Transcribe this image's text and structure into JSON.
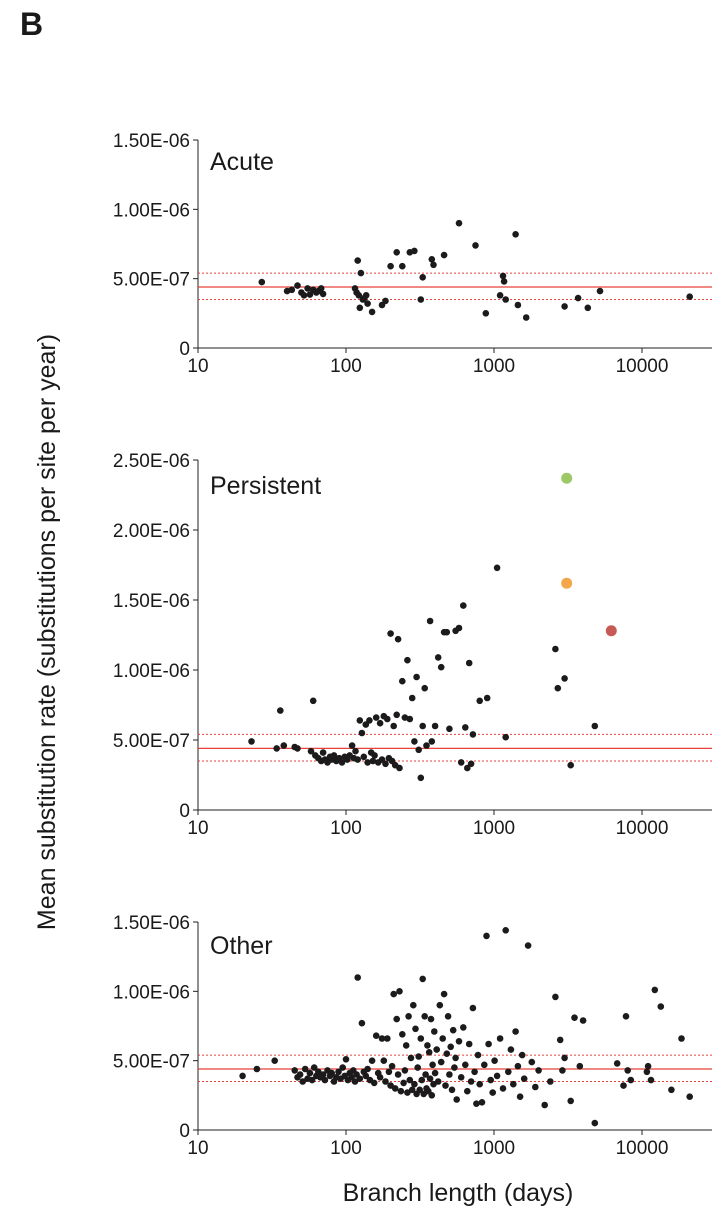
{
  "panel_label": "B",
  "ylabel": "Mean substitution rate (substitutions per site per year)",
  "xlabel": "Branch length (days)",
  "colors": {
    "point": "#1c1a1a",
    "mean_line": "#e8413a",
    "ci_line": "#e8413a",
    "axis": "#222222",
    "green": "#9cc866",
    "orange": "#f4a64a",
    "red": "#c85a56"
  },
  "chart_data": [
    {
      "type": "scatter",
      "title": "Acute",
      "x_scale": "log",
      "xlim": [
        10,
        30000
      ],
      "ylim": [
        0,
        1.5e-06
      ],
      "x_ticks": [
        10,
        100,
        1000,
        10000
      ],
      "x_tick_labels": [
        "10",
        "100",
        "1000",
        "10000"
      ],
      "y_ticks": [
        0,
        5e-07,
        1e-06,
        1.5e-06
      ],
      "y_tick_labels": [
        "0",
        "5.00E-07",
        "1.00E-06",
        "1.50E-06"
      ],
      "reference_lines": {
        "mean": 4.4e-07,
        "lower": 3.5e-07,
        "upper": 5.4e-07
      },
      "points": [
        [
          27,
          4.75e-07
        ],
        [
          40,
          4.1e-07
        ],
        [
          43,
          4.2e-07
        ],
        [
          47,
          4.5e-07
        ],
        [
          50,
          4e-07
        ],
        [
          52,
          3.8e-07
        ],
        [
          55,
          4.3e-07
        ],
        [
          57,
          3.85e-07
        ],
        [
          60,
          4.2e-07
        ],
        [
          63,
          4e-07
        ],
        [
          65,
          4.1e-07
        ],
        [
          68,
          4.3e-07
        ],
        [
          70,
          3.9e-07
        ],
        [
          115,
          4.3e-07
        ],
        [
          118,
          4e-07
        ],
        [
          120,
          6.3e-07
        ],
        [
          122,
          3.8e-07
        ],
        [
          124,
          2.9e-07
        ],
        [
          126,
          5.4e-07
        ],
        [
          130,
          3.5e-07
        ],
        [
          133,
          3.6e-07
        ],
        [
          137,
          3.8e-07
        ],
        [
          140,
          3.2e-07
        ],
        [
          150,
          2.6e-07
        ],
        [
          175,
          3.1e-07
        ],
        [
          185,
          3.4e-07
        ],
        [
          200,
          5.9e-07
        ],
        [
          220,
          6.9e-07
        ],
        [
          240,
          5.9e-07
        ],
        [
          270,
          6.9e-07
        ],
        [
          290,
          7e-07
        ],
        [
          320,
          3.5e-07
        ],
        [
          330,
          5.1e-07
        ],
        [
          380,
          6.4e-07
        ],
        [
          390,
          6e-07
        ],
        [
          460,
          6.7e-07
        ],
        [
          580,
          9e-07
        ],
        [
          750,
          7.4e-07
        ],
        [
          880,
          2.5e-07
        ],
        [
          1100,
          3.8e-07
        ],
        [
          1150,
          5.2e-07
        ],
        [
          1170,
          4.8e-07
        ],
        [
          1200,
          3.5e-07
        ],
        [
          1400,
          8.2e-07
        ],
        [
          1450,
          3.1e-07
        ],
        [
          1650,
          2.2e-07
        ],
        [
          3000,
          3e-07
        ],
        [
          3700,
          3.6e-07
        ],
        [
          4300,
          2.9e-07
        ],
        [
          5200,
          4.1e-07
        ],
        [
          21000,
          3.7e-07
        ]
      ]
    },
    {
      "type": "scatter",
      "title": "Persistent",
      "x_scale": "log",
      "xlim": [
        10,
        30000
      ],
      "ylim": [
        0,
        2.5e-06
      ],
      "x_ticks": [
        10,
        100,
        1000,
        10000
      ],
      "x_tick_labels": [
        "10",
        "100",
        "1000",
        "10000"
      ],
      "y_ticks": [
        0,
        5e-07,
        1e-06,
        1.5e-06,
        2e-06,
        2.5e-06
      ],
      "y_tick_labels": [
        "0",
        "5.00E-07",
        "1.00E-06",
        "1.50E-06",
        "2.00E-06",
        "2.50E-06"
      ],
      "reference_lines": {
        "mean": 4.4e-07,
        "lower": 3.5e-07,
        "upper": 5.4e-07
      },
      "highlighted_points": [
        {
          "x": 3100,
          "y": 2.37e-06,
          "color": "green"
        },
        {
          "x": 3100,
          "y": 1.62e-06,
          "color": "orange"
        },
        {
          "x": 6200,
          "y": 1.28e-06,
          "color": "red"
        }
      ],
      "points": [
        [
          23,
          4.9e-07
        ],
        [
          34,
          4.4e-07
        ],
        [
          36,
          7.1e-07
        ],
        [
          38,
          4.6e-07
        ],
        [
          45,
          4.5e-07
        ],
        [
          47,
          4.4e-07
        ],
        [
          58,
          4.2e-07
        ],
        [
          60,
          7.8e-07
        ],
        [
          62,
          3.9e-07
        ],
        [
          65,
          3.7e-07
        ],
        [
          68,
          3.5e-07
        ],
        [
          70,
          4.1e-07
        ],
        [
          72,
          3.6e-07
        ],
        [
          75,
          3.4e-07
        ],
        [
          78,
          3.8e-07
        ],
        [
          80,
          3.6e-07
        ],
        [
          83,
          3.9e-07
        ],
        [
          86,
          3.5e-07
        ],
        [
          90,
          3.7e-07
        ],
        [
          94,
          3.4e-07
        ],
        [
          98,
          3.8e-07
        ],
        [
          102,
          3.6e-07
        ],
        [
          106,
          3.9e-07
        ],
        [
          110,
          4.6e-07
        ],
        [
          113,
          3.7e-07
        ],
        [
          116,
          4.2e-07
        ],
        [
          120,
          3.6e-07
        ],
        [
          124,
          6.4e-07
        ],
        [
          128,
          5.5e-07
        ],
        [
          132,
          3.8e-07
        ],
        [
          136,
          6.1e-07
        ],
        [
          140,
          3.4e-07
        ],
        [
          144,
          6.4e-07
        ],
        [
          148,
          4.1e-07
        ],
        [
          152,
          3.5e-07
        ],
        [
          156,
          3.9e-07
        ],
        [
          160,
          6.6e-07
        ],
        [
          165,
          3.4e-07
        ],
        [
          170,
          6.2e-07
        ],
        [
          175,
          3.6e-07
        ],
        [
          180,
          6.7e-07
        ],
        [
          185,
          3.3e-07
        ],
        [
          190,
          6.5e-07
        ],
        [
          195,
          3.7e-07
        ],
        [
          200,
          1.26e-06
        ],
        [
          205,
          3.5e-07
        ],
        [
          210,
          6e-07
        ],
        [
          215,
          3.2e-07
        ],
        [
          220,
          6.8e-07
        ],
        [
          225,
          1.22e-06
        ],
        [
          230,
          3e-07
        ],
        [
          240,
          9.2e-07
        ],
        [
          250,
          6.6e-07
        ],
        [
          260,
          1.07e-06
        ],
        [
          270,
          6.5e-07
        ],
        [
          280,
          8e-07
        ],
        [
          290,
          4.9e-07
        ],
        [
          300,
          9.5e-07
        ],
        [
          310,
          4.3e-07
        ],
        [
          320,
          2.3e-07
        ],
        [
          330,
          6e-07
        ],
        [
          340,
          8.7e-07
        ],
        [
          350,
          4.6e-07
        ],
        [
          370,
          1.35e-06
        ],
        [
          380,
          4.9e-07
        ],
        [
          400,
          6e-07
        ],
        [
          420,
          1.09e-06
        ],
        [
          440,
          1.02e-06
        ],
        [
          460,
          1.27e-06
        ],
        [
          480,
          1.27e-06
        ],
        [
          500,
          5.8e-07
        ],
        [
          550,
          1.28e-06
        ],
        [
          580,
          1.3e-06
        ],
        [
          600,
          3.4e-07
        ],
        [
          620,
          1.46e-06
        ],
        [
          640,
          5.9e-07
        ],
        [
          660,
          3e-07
        ],
        [
          680,
          1.05e-06
        ],
        [
          700,
          3.3e-07
        ],
        [
          720,
          5.4e-07
        ],
        [
          800,
          7.8e-07
        ],
        [
          900,
          8e-07
        ],
        [
          1050,
          1.73e-06
        ],
        [
          1200,
          5.2e-07
        ],
        [
          2600,
          1.15e-06
        ],
        [
          2700,
          8.7e-07
        ],
        [
          3000,
          9.4e-07
        ],
        [
          3300,
          3.2e-07
        ],
        [
          4800,
          6e-07
        ]
      ]
    },
    {
      "type": "scatter",
      "title": "Other",
      "x_scale": "log",
      "xlim": [
        10,
        30000
      ],
      "ylim": [
        0,
        1.5e-06
      ],
      "x_ticks": [
        10,
        100,
        1000,
        10000
      ],
      "x_tick_labels": [
        "10",
        "100",
        "1000",
        "10000"
      ],
      "y_ticks": [
        0,
        5e-07,
        1e-06,
        1.5e-06
      ],
      "y_tick_labels": [
        "0",
        "5.00E-07",
        "1.00E-06",
        "1.50E-06"
      ],
      "reference_lines": {
        "mean": 4.4e-07,
        "lower": 3.5e-07,
        "upper": 5.4e-07
      },
      "points": [
        [
          20,
          3.9e-07
        ],
        [
          25,
          4.4e-07
        ],
        [
          33,
          5e-07
        ],
        [
          45,
          4.3e-07
        ],
        [
          47,
          3.8e-07
        ],
        [
          49,
          4e-07
        ],
        [
          51,
          3.5e-07
        ],
        [
          53,
          4.4e-07
        ],
        [
          55,
          3.7e-07
        ],
        [
          57,
          4.1e-07
        ],
        [
          59,
          3.6e-07
        ],
        [
          61,
          4.5e-07
        ],
        [
          63,
          3.9e-07
        ],
        [
          65,
          4.2e-07
        ],
        [
          67,
          3.8e-07
        ],
        [
          70,
          4e-07
        ],
        [
          72,
          3.6e-07
        ],
        [
          75,
          4.3e-07
        ],
        [
          78,
          3.9e-07
        ],
        [
          80,
          4.1e-07
        ],
        [
          83,
          3.5e-07
        ],
        [
          86,
          3.8e-07
        ],
        [
          89,
          4.2e-07
        ],
        [
          92,
          3.7e-07
        ],
        [
          95,
          4.5e-07
        ],
        [
          98,
          3.9e-07
        ],
        [
          100,
          5.1e-07
        ],
        [
          103,
          3.6e-07
        ],
        [
          106,
          4.1e-07
        ],
        [
          109,
          3.8e-07
        ],
        [
          112,
          4.3e-07
        ],
        [
          115,
          3.5e-07
        ],
        [
          118,
          4e-07
        ],
        [
          120,
          1.1e-06
        ],
        [
          124,
          3.7e-07
        ],
        [
          128,
          7.7e-07
        ],
        [
          132,
          4.2e-07
        ],
        [
          136,
          3.9e-07
        ],
        [
          140,
          4.4e-07
        ],
        [
          145,
          3.6e-07
        ],
        [
          150,
          5e-07
        ],
        [
          155,
          3.4e-07
        ],
        [
          160,
          6.8e-07
        ],
        [
          165,
          4.1e-07
        ],
        [
          170,
          3.8e-07
        ],
        [
          175,
          6.6e-07
        ],
        [
          180,
          5e-07
        ],
        [
          185,
          3.5e-07
        ],
        [
          190,
          6.6e-07
        ],
        [
          195,
          4.2e-07
        ],
        [
          200,
          3.2e-07
        ],
        [
          205,
          4.6e-07
        ],
        [
          210,
          9.8e-07
        ],
        [
          215,
          3e-07
        ],
        [
          220,
          8e-07
        ],
        [
          225,
          4e-07
        ],
        [
          230,
          1e-06
        ],
        [
          235,
          2.8e-07
        ],
        [
          240,
          6.9e-07
        ],
        [
          245,
          3.4e-07
        ],
        [
          250,
          4.3e-07
        ],
        [
          255,
          6.1e-07
        ],
        [
          260,
          2.7e-07
        ],
        [
          265,
          8.2e-07
        ],
        [
          270,
          3.6e-07
        ],
        [
          275,
          5.2e-07
        ],
        [
          280,
          2.9e-07
        ],
        [
          285,
          9e-07
        ],
        [
          290,
          3.3e-07
        ],
        [
          295,
          7.3e-07
        ],
        [
          300,
          2.6e-07
        ],
        [
          305,
          4.5e-07
        ],
        [
          310,
          5.3e-07
        ],
        [
          315,
          2.9e-07
        ],
        [
          320,
          6.6e-07
        ],
        [
          325,
          3.6e-07
        ],
        [
          330,
          1.09e-06
        ],
        [
          335,
          2.6e-07
        ],
        [
          340,
          8.2e-07
        ],
        [
          345,
          4e-07
        ],
        [
          350,
          3e-07
        ],
        [
          355,
          6.1e-07
        ],
        [
          360,
          2.8e-07
        ],
        [
          365,
          5.6e-07
        ],
        [
          370,
          3.7e-07
        ],
        [
          375,
          8e-07
        ],
        [
          380,
          2.5e-07
        ],
        [
          385,
          4.7e-07
        ],
        [
          390,
          3.3e-07
        ],
        [
          395,
          7.1e-07
        ],
        [
          400,
          4.1e-07
        ],
        [
          410,
          5.8e-07
        ],
        [
          420,
          3.5e-07
        ],
        [
          430,
          9e-07
        ],
        [
          440,
          4.9e-07
        ],
        [
          450,
          6.6e-07
        ],
        [
          460,
          9.8e-07
        ],
        [
          470,
          3.2e-07
        ],
        [
          480,
          5.5e-07
        ],
        [
          490,
          8.2e-07
        ],
        [
          500,
          4e-07
        ],
        [
          510,
          6e-07
        ],
        [
          520,
          2.9e-07
        ],
        [
          530,
          7.2e-07
        ],
        [
          540,
          4.5e-07
        ],
        [
          550,
          5.2e-07
        ],
        [
          560,
          2.2e-07
        ],
        [
          580,
          6.4e-07
        ],
        [
          600,
          3.8e-07
        ],
        [
          620,
          7.4e-07
        ],
        [
          640,
          4.7e-07
        ],
        [
          660,
          2.8e-07
        ],
        [
          680,
          6.2e-07
        ],
        [
          700,
          3.5e-07
        ],
        [
          720,
          8.8e-07
        ],
        [
          740,
          4.2e-07
        ],
        [
          760,
          1.9e-07
        ],
        [
          780,
          5.4e-07
        ],
        [
          800,
          3.3e-07
        ],
        [
          830,
          2e-07
        ],
        [
          860,
          4.7e-07
        ],
        [
          890,
          1.4e-06
        ],
        [
          920,
          6.2e-07
        ],
        [
          950,
          3.6e-07
        ],
        [
          980,
          2.7e-07
        ],
        [
          1010,
          5e-07
        ],
        [
          1050,
          3.9e-07
        ],
        [
          1100,
          6.6e-07
        ],
        [
          1150,
          3e-07
        ],
        [
          1200,
          1.44e-06
        ],
        [
          1250,
          4.2e-07
        ],
        [
          1300,
          5.8e-07
        ],
        [
          1350,
          3.3e-07
        ],
        [
          1400,
          7.1e-07
        ],
        [
          1450,
          4.6e-07
        ],
        [
          1500,
          2.4e-07
        ],
        [
          1550,
          5.4e-07
        ],
        [
          1600,
          3.7e-07
        ],
        [
          1700,
          1.33e-06
        ],
        [
          1800,
          4.9e-07
        ],
        [
          1900,
          3.1e-07
        ],
        [
          2000,
          4.3e-07
        ],
        [
          2200,
          1.8e-07
        ],
        [
          2400,
          3.5e-07
        ],
        [
          2600,
          9.6e-07
        ],
        [
          2800,
          6.5e-07
        ],
        [
          2900,
          4.3e-07
        ],
        [
          3000,
          5.2e-07
        ],
        [
          3300,
          2.1e-07
        ],
        [
          3500,
          8.1e-07
        ],
        [
          3800,
          4.6e-07
        ],
        [
          4000,
          7.9e-07
        ],
        [
          4800,
          5e-08
        ],
        [
          6800,
          4.8e-07
        ],
        [
          7500,
          3.2e-07
        ],
        [
          7800,
          8.2e-07
        ],
        [
          8000,
          4.3e-07
        ],
        [
          8400,
          3.6e-07
        ],
        [
          10800,
          4.2e-07
        ],
        [
          11000,
          4.6e-07
        ],
        [
          11500,
          3.6e-07
        ],
        [
          12200,
          1.01e-06
        ],
        [
          13400,
          8.9e-07
        ],
        [
          15800,
          2.9e-07
        ],
        [
          18500,
          6.6e-07
        ],
        [
          21000,
          2.4e-07
        ]
      ]
    }
  ]
}
